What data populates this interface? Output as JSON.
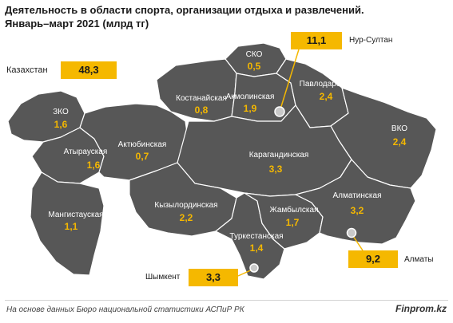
{
  "title": {
    "line1": "Деятельность в области спорта, организации отдыха и развлечений.",
    "line2": "Январь–март 2021  (млрд тг)"
  },
  "country": {
    "label": "Казахстан",
    "value": "48,3"
  },
  "regions": [
    {
      "id": "sko",
      "name": "СКО",
      "value": "0,5"
    },
    {
      "id": "kostanay",
      "name": "Костанайская",
      "value": "0,8"
    },
    {
      "id": "akmola",
      "name": "Акмолинская",
      "value": "1,9"
    },
    {
      "id": "pavlodar",
      "name": "Павлодарская",
      "value": "2,4"
    },
    {
      "id": "zko",
      "name": "ЗКО",
      "value": "1,6"
    },
    {
      "id": "aktobe",
      "name": "Актюбинская",
      "value": "0,7"
    },
    {
      "id": "atyrau",
      "name": "Атырауская",
      "value": "1,6"
    },
    {
      "id": "vko",
      "name": "ВКО",
      "value": "2,4"
    },
    {
      "id": "karaganda",
      "name": "Карагандинская",
      "value": "3,3"
    },
    {
      "id": "mangistau",
      "name": "Мангистауская",
      "value": "1,1"
    },
    {
      "id": "kyzylorda",
      "name": "Кызылординская",
      "value": "2,2"
    },
    {
      "id": "zhambyl",
      "name": "Жамбылская",
      "value": "1,7"
    },
    {
      "id": "almaty_obl",
      "name": "Алматинская",
      "value": "3,2"
    },
    {
      "id": "turkestan",
      "name": "Туркестанская",
      "value": "1,4"
    }
  ],
  "cities": [
    {
      "id": "nur-sultan",
      "name": "Нур-Султан",
      "value": "11,1"
    },
    {
      "id": "almaty",
      "name": "Алматы",
      "value": "9,2"
    },
    {
      "id": "shymkent",
      "name": "Шымкент",
      "value": "3,3"
    }
  ],
  "colors": {
    "region_fill": "#575757",
    "region_border": "#ffffff",
    "accent": "#f5b800",
    "region_label": "#ffffff"
  },
  "footer": {
    "source": "На основе данных Бюро национальной статистики АСПиР РК",
    "brand": "Finprom.kz"
  }
}
